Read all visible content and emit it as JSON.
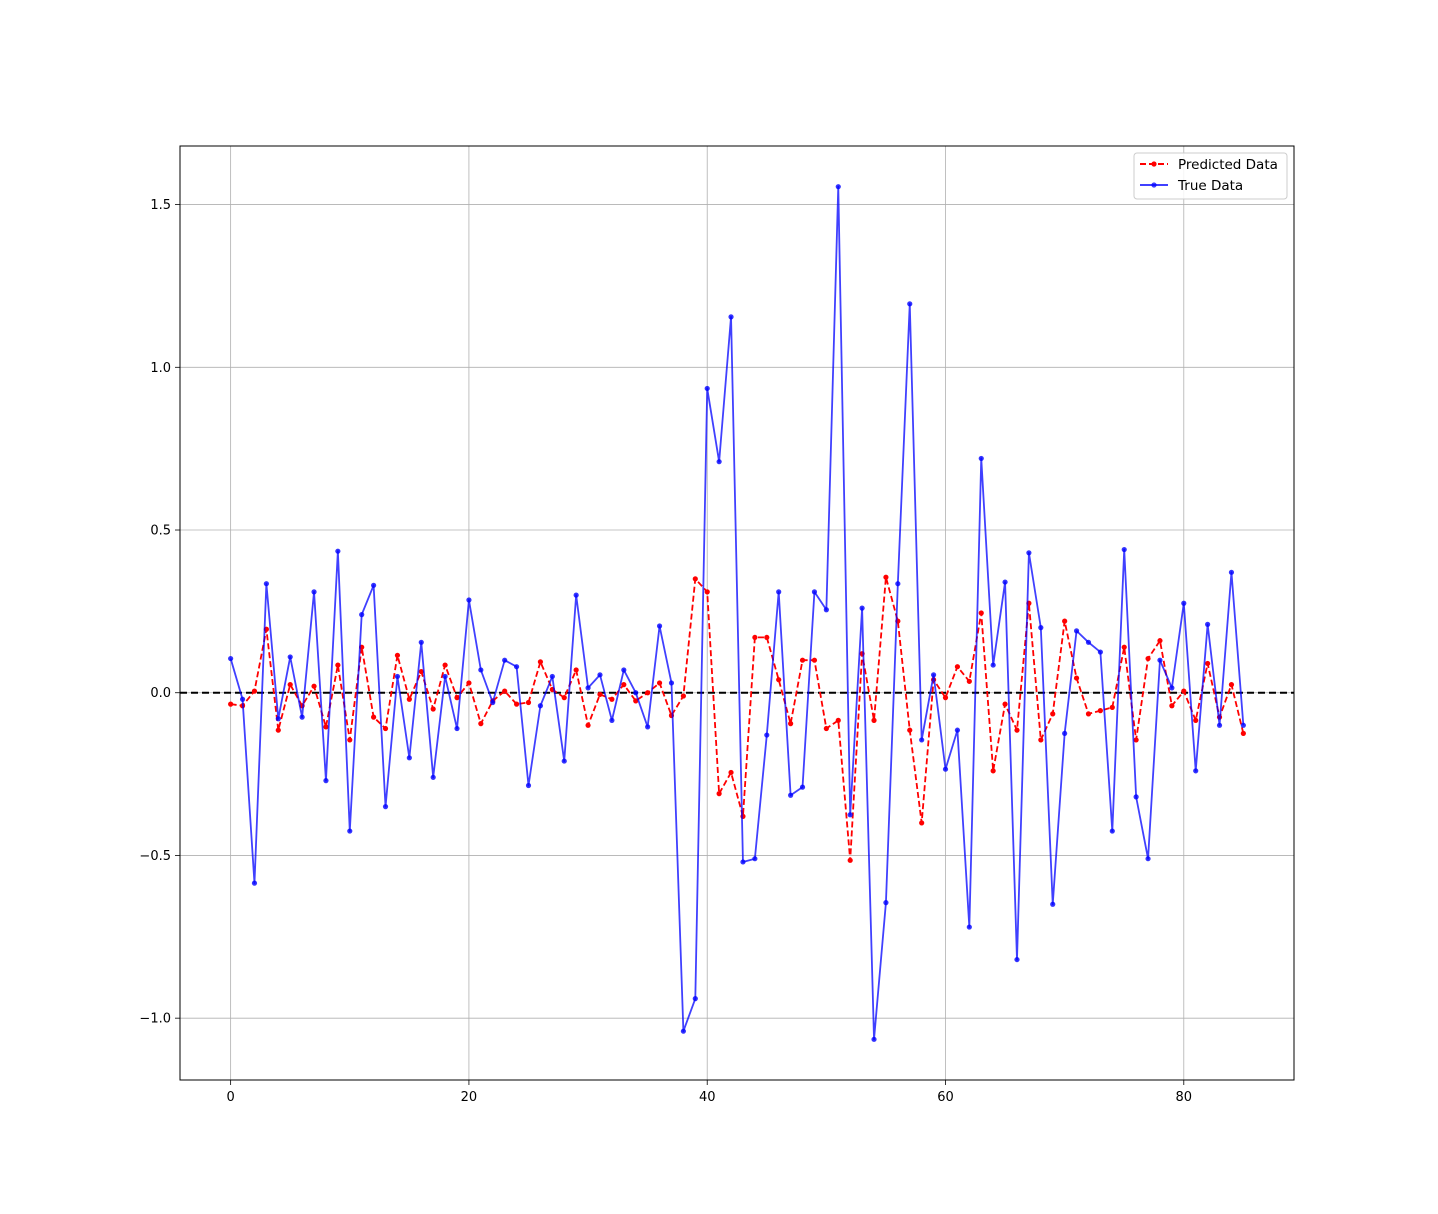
{
  "chart_data": {
    "type": "line",
    "title": "",
    "xlabel": "",
    "ylabel": "",
    "xlim": [
      -4.25,
      89.25
    ],
    "ylim": [
      -1.19,
      1.68
    ],
    "xticks": [
      0,
      20,
      40,
      60,
      80
    ],
    "xtick_labels": [
      "0",
      "20",
      "40",
      "60",
      "80"
    ],
    "yticks": [
      -1.0,
      -0.5,
      0.0,
      0.5,
      1.0,
      1.5
    ],
    "ytick_labels": [
      "−1.0",
      "−0.5",
      "0.0",
      "0.5",
      "1.0",
      "1.5"
    ],
    "grid": true,
    "legend_position": "upper right",
    "reference_line": {
      "y": 0.0,
      "color": "#000000",
      "style": "dashed"
    },
    "series": [
      {
        "name": "Predicted Data",
        "color": "#ff0000",
        "line_style": "dashed",
        "marker": "dot",
        "x": [
          0,
          1,
          2,
          3,
          4,
          5,
          6,
          7,
          8,
          9,
          10,
          11,
          12,
          13,
          14,
          15,
          16,
          17,
          18,
          19,
          20,
          21,
          22,
          23,
          24,
          25,
          26,
          27,
          28,
          29,
          30,
          31,
          32,
          33,
          34,
          35,
          36,
          37,
          38,
          39,
          40,
          41,
          42,
          43,
          44,
          45,
          46,
          47,
          48,
          49,
          50,
          51,
          52,
          53,
          54,
          55,
          56,
          57,
          58,
          59,
          60,
          61,
          62,
          63,
          64,
          65,
          66,
          67,
          68,
          69,
          70,
          71,
          72,
          73,
          74,
          75,
          76,
          77,
          78,
          79,
          80,
          81,
          82,
          83,
          84,
          85
        ],
        "values": [
          -0.035,
          -0.04,
          0.005,
          0.195,
          -0.115,
          0.025,
          -0.04,
          0.02,
          -0.105,
          0.085,
          -0.145,
          0.14,
          -0.075,
          -0.11,
          0.115,
          -0.02,
          0.065,
          -0.05,
          0.085,
          -0.015,
          0.03,
          -0.095,
          -0.025,
          0.005,
          -0.035,
          -0.03,
          0.095,
          0.01,
          -0.015,
          0.07,
          -0.1,
          -0.005,
          -0.02,
          0.025,
          -0.025,
          0.0,
          0.03,
          -0.07,
          -0.01,
          0.35,
          0.31,
          -0.31,
          -0.245,
          -0.38,
          0.17,
          0.17,
          0.04,
          -0.095,
          0.1,
          0.1,
          -0.11,
          -0.085,
          -0.515,
          0.12,
          -0.085,
          0.355,
          0.22,
          -0.115,
          -0.4,
          0.04,
          -0.015,
          0.08,
          0.035,
          0.245,
          -0.24,
          -0.035,
          -0.115,
          0.275,
          -0.145,
          -0.065,
          0.22,
          0.045,
          -0.065,
          -0.055,
          -0.045,
          0.14,
          -0.145,
          0.105,
          0.16,
          -0.04,
          0.005,
          -0.085,
          0.09,
          -0.075,
          0.025,
          -0.125
        ]
      },
      {
        "name": "True Data",
        "color": "#0000ff",
        "line_style": "solid",
        "marker": "dot",
        "x": [
          0,
          1,
          2,
          3,
          4,
          5,
          6,
          7,
          8,
          9,
          10,
          11,
          12,
          13,
          14,
          15,
          16,
          17,
          18,
          19,
          20,
          21,
          22,
          23,
          24,
          25,
          26,
          27,
          28,
          29,
          30,
          31,
          32,
          33,
          34,
          35,
          36,
          37,
          38,
          39,
          40,
          41,
          42,
          43,
          44,
          45,
          46,
          47,
          48,
          49,
          50,
          51,
          52,
          53,
          54,
          55,
          56,
          57,
          58,
          59,
          60,
          61,
          62,
          63,
          64,
          65,
          66,
          67,
          68,
          69,
          70,
          71,
          72,
          73,
          74,
          75,
          76,
          77,
          78,
          79,
          80,
          81,
          82,
          83,
          84,
          85
        ],
        "values": [
          0.105,
          -0.02,
          -0.585,
          0.335,
          -0.08,
          0.11,
          -0.075,
          0.31,
          -0.27,
          0.435,
          -0.425,
          0.24,
          0.33,
          -0.35,
          0.05,
          -0.2,
          0.155,
          -0.26,
          0.05,
          -0.11,
          0.285,
          0.07,
          -0.03,
          0.1,
          0.08,
          -0.285,
          -0.04,
          0.05,
          -0.21,
          0.3,
          0.015,
          0.055,
          -0.085,
          0.07,
          0.0,
          -0.105,
          0.205,
          0.03,
          -1.04,
          -0.94,
          0.935,
          0.71,
          1.155,
          -0.52,
          -0.51,
          -0.13,
          0.31,
          -0.315,
          -0.29,
          0.31,
          0.255,
          1.555,
          -0.375,
          0.26,
          -1.065,
          -0.645,
          0.335,
          1.195,
          -0.145,
          0.055,
          -0.235,
          -0.115,
          -0.72,
          0.72,
          0.085,
          0.34,
          -0.82,
          0.43,
          0.2,
          -0.65,
          -0.125,
          0.19,
          0.155,
          0.125,
          -0.425,
          0.44,
          -0.32,
          -0.51,
          0.1,
          0.015,
          0.275,
          -0.24,
          0.21,
          -0.1,
          0.37,
          -0.1
        ]
      }
    ]
  }
}
